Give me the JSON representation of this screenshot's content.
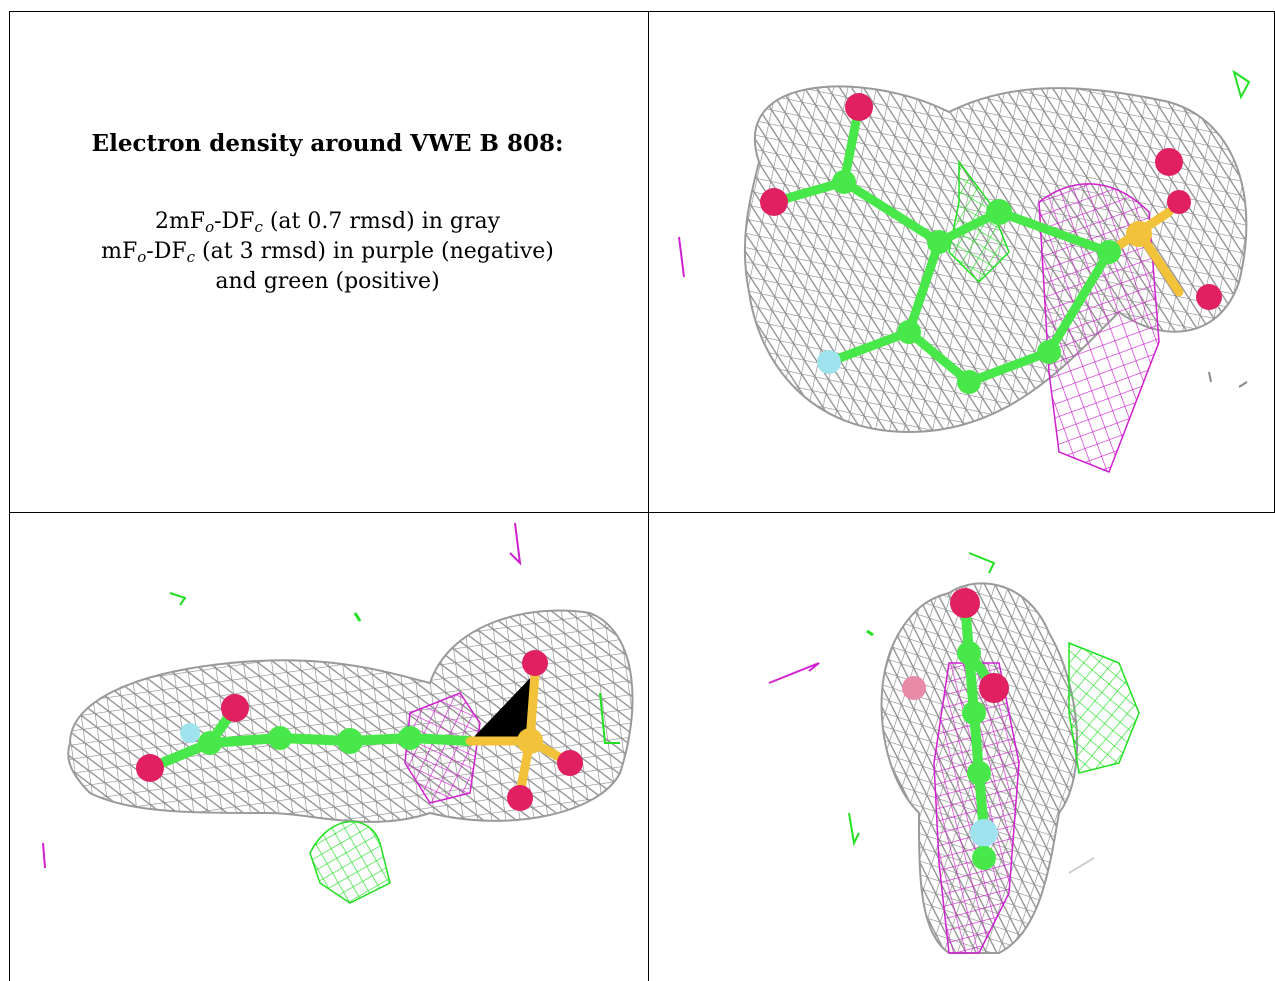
{
  "caption": {
    "title": "Electron density around VWE B 808:",
    "line1": {
      "t1": "2mF",
      "s1": "o",
      "t2": "-DF",
      "s2": "c",
      "t3": " (at 0.7 rmsd) in gray"
    },
    "line2": {
      "t1": "mF",
      "s1": "o",
      "t2": "-DF",
      "s2": "c",
      "t3": " (at 3 rmsd) in purple (negative)"
    },
    "line3": "and green (positive)"
  },
  "colors": {
    "mesh_gray": "#8a8a8a",
    "mesh_purple": "#d020d0",
    "mesh_green": "#22e022",
    "atom_carbon": "#49e84a",
    "atom_oxygen": "#e02060",
    "atom_sulfur": "#f2c23a",
    "atom_fluorine": "#9fe3ee"
  }
}
